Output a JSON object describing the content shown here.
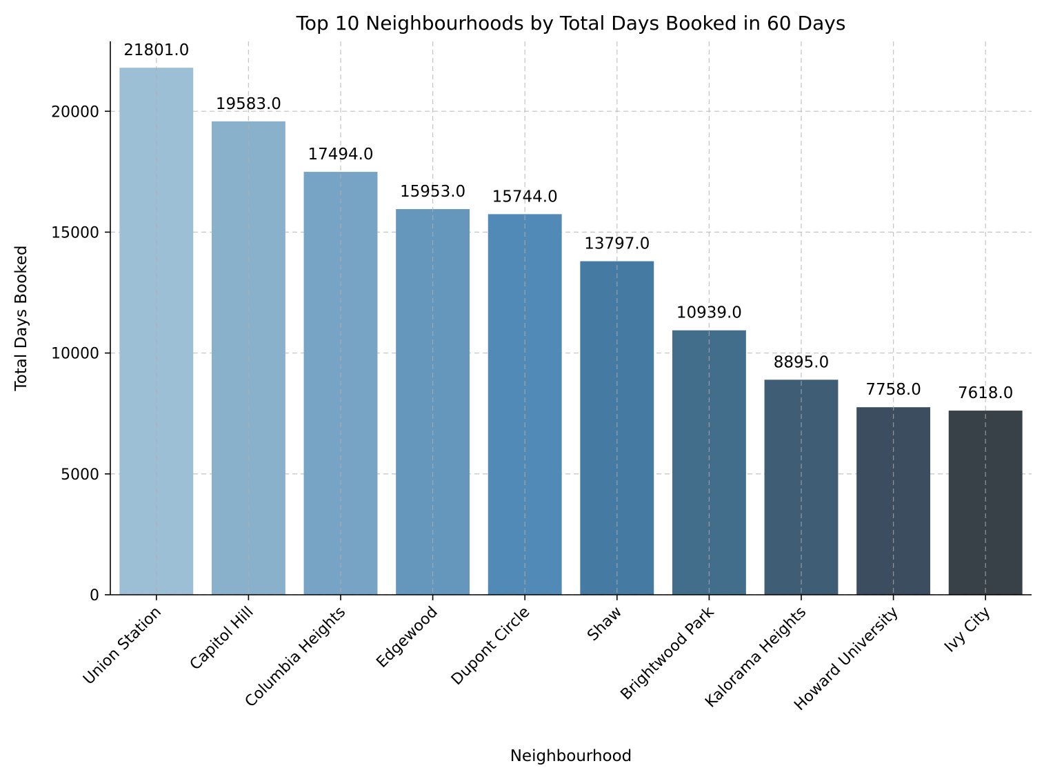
{
  "chart_data": {
    "type": "bar",
    "title": "Top 10 Neighbourhoods by Total Days Booked in 60 Days",
    "xlabel": "Neighbourhood",
    "ylabel": "Total Days Booked",
    "categories": [
      "Union Station",
      "Capitol Hill",
      "Columbia Heights",
      "Edgewood",
      "Dupont Circle",
      "Shaw",
      "Brightwood Park",
      "Kalorama Heights",
      "Howard University",
      "Ivy City"
    ],
    "values": [
      21801.0,
      19583.0,
      17494.0,
      15953.0,
      15744.0,
      13797.0,
      10939.0,
      8895.0,
      7758.0,
      7618.0
    ],
    "data_labels": [
      "21801.0",
      "19583.0",
      "17494.0",
      "15953.0",
      "15744.0",
      "13797.0",
      "10939.0",
      "8895.0",
      "7758.0",
      "7618.0"
    ],
    "colors": [
      "#9dbfd6",
      "#8ab1cc",
      "#77a4c4",
      "#6597bd",
      "#528ab7",
      "#457aa3",
      "#426d8b",
      "#3f5d75",
      "#3b4d5e",
      "#384148"
    ],
    "yticks": [
      0,
      5000,
      10000,
      15000,
      20000
    ],
    "ytick_labels": [
      "0",
      "5000",
      "10000",
      "15000",
      "20000"
    ],
    "ylim": [
      0,
      22890
    ],
    "grid": true,
    "legend": "none"
  }
}
